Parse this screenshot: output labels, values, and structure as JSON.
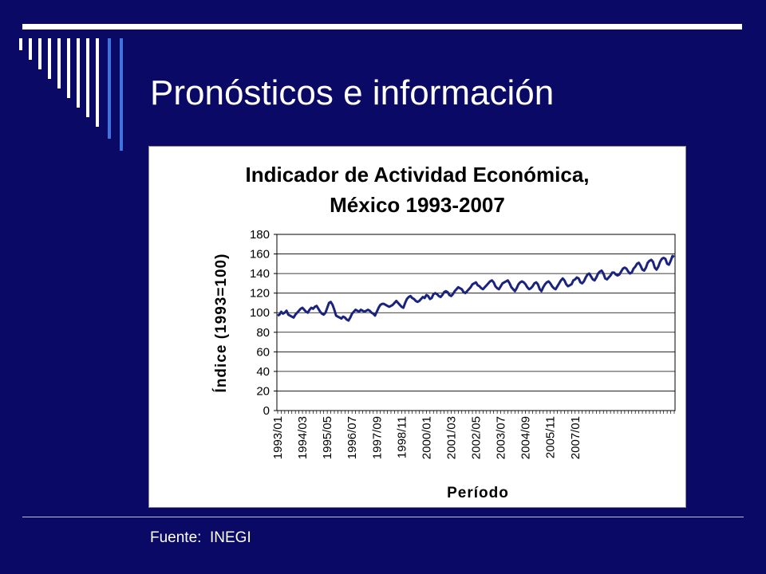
{
  "slide": {
    "title": "Pronósticos e información",
    "source": "Fuente:  INEGI"
  },
  "colors": {
    "background": "#0a0a66",
    "accent_bar": "#3f73e0",
    "line": "#1a237e"
  },
  "chart_data": {
    "type": "line",
    "title": [
      "Indicador de Actividad Económica,",
      "México 1993-2007"
    ],
    "xlabel": "Período",
    "ylabel": "Índice (1993=100)",
    "ylim": [
      0,
      180
    ],
    "yticks": [
      0,
      20,
      40,
      60,
      80,
      100,
      120,
      140,
      160,
      180
    ],
    "xtick_labels": [
      "1993/01",
      "1994/03",
      "1995/05",
      "1996/07",
      "1997/09",
      "1998/11",
      "2000/01",
      "2001/03",
      "2002/05",
      "2003/07",
      "2004/09",
      "2005/11",
      "2007/01"
    ],
    "grid": "horizontal",
    "series": [
      {
        "x_start": "1993/01",
        "frequency": "monthly",
        "values": [
          97,
          98,
          101,
          99,
          100,
          102,
          98,
          97,
          96,
          95,
          98,
          100,
          102,
          104,
          105,
          103,
          101,
          100,
          103,
          105,
          104,
          106,
          107,
          104,
          101,
          99,
          98,
          100,
          105,
          110,
          111,
          108,
          103,
          97,
          96,
          95,
          94,
          96,
          95,
          93,
          92,
          95,
          99,
          101,
          103,
          102,
          101,
          103,
          102,
          101,
          102,
          103,
          102,
          100,
          99,
          97,
          101,
          105,
          108,
          109,
          109,
          108,
          107,
          106,
          107,
          108,
          110,
          112,
          110,
          108,
          106,
          105,
          110,
          114,
          116,
          117,
          115,
          114,
          112,
          111,
          112,
          114,
          116,
          115,
          118,
          117,
          114,
          115,
          119,
          120,
          119,
          117,
          116,
          118,
          121,
          122,
          121,
          118,
          117,
          119,
          122,
          124,
          126,
          125,
          124,
          121,
          120,
          122,
          124,
          126,
          129,
          130,
          131,
          128,
          127,
          125,
          124,
          126,
          128,
          130,
          132,
          133,
          131,
          127,
          125,
          124,
          127,
          130,
          131,
          132,
          133,
          130,
          126,
          124,
          122,
          125,
          129,
          131,
          132,
          131,
          129,
          126,
          124,
          125,
          127,
          130,
          131,
          129,
          124,
          122,
          126,
          129,
          131,
          132,
          130,
          127,
          125,
          124,
          127,
          130,
          133,
          135,
          133,
          129,
          127,
          128,
          129,
          133,
          134,
          136,
          135,
          131,
          130,
          132,
          136,
          139,
          140,
          137,
          134,
          133,
          136,
          140,
          142,
          143,
          140,
          135,
          134,
          136,
          138,
          141,
          141,
          139,
          138,
          139,
          142,
          145,
          146,
          145,
          142,
          140,
          141,
          145,
          147,
          150,
          151,
          148,
          144,
          143,
          146,
          151,
          153,
          154,
          152,
          146,
          144,
          147,
          152,
          155,
          156,
          155,
          150,
          149,
          153,
          158,
          157
        ]
      }
    ]
  }
}
